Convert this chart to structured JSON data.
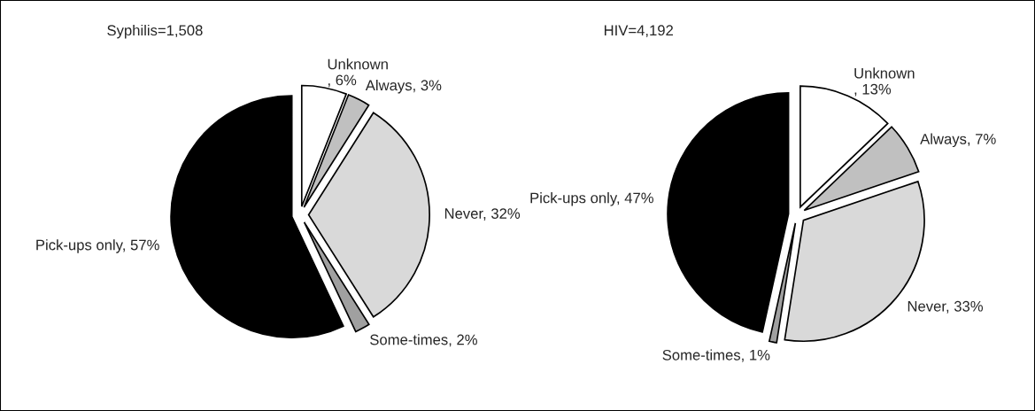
{
  "chart_data": [
    {
      "type": "pie",
      "title": "Syphilis=1,508",
      "categories": [
        "Unknown",
        "Always",
        "Never",
        "Some-times",
        "Pick-ups only"
      ],
      "values": [
        6,
        3,
        32,
        2,
        57
      ],
      "value_labels": [
        ", 6%",
        ", 3%",
        ", 32%",
        ", 2%",
        ", 57%"
      ],
      "colors": [
        "#ffffff",
        "#c0c0c0",
        "#d9d9d9",
        "#a0a0a0",
        "#000000"
      ]
    },
    {
      "type": "pie",
      "title": "HIV=4,192",
      "categories": [
        "Unknown",
        "Always",
        "Never",
        "Some-times",
        "Pick-ups only"
      ],
      "values": [
        13,
        7,
        33,
        1,
        47
      ],
      "value_labels": [
        ", 13%",
        ", 7%",
        ", 33%",
        ", 1%",
        ", 47%"
      ],
      "colors": [
        "#ffffff",
        "#c0c0c0",
        "#d9d9d9",
        "#a0a0a0",
        "#000000"
      ]
    }
  ]
}
